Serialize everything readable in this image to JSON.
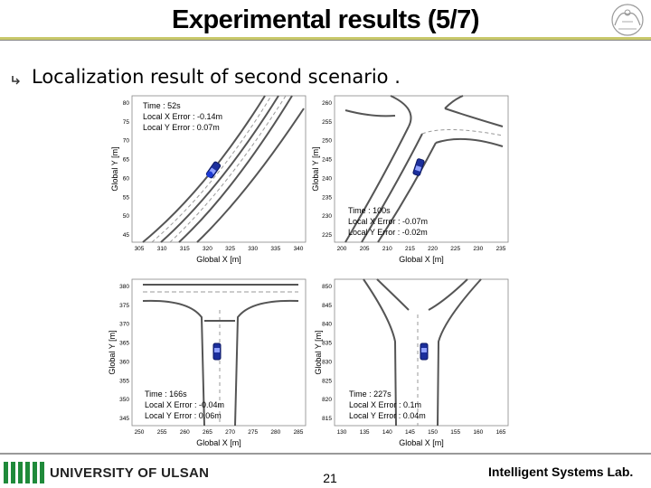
{
  "slide": {
    "title": "Experimental results (5/7)",
    "subtitle": "Localization result of second scenario .",
    "footer": {
      "university": "UNIVERSITY OF ULSAN",
      "page": "21",
      "lab": "Intelligent Systems Lab."
    }
  },
  "panels": [
    {
      "xlabel": "Global X [m]",
      "ylabel": "Global Y [m]",
      "xticks": [
        "305",
        "310",
        "315",
        "320",
        "325",
        "330",
        "335",
        "340"
      ],
      "yticks": [
        "80",
        "75",
        "70",
        "65",
        "60",
        "55",
        "50",
        "45"
      ],
      "lines": [
        "Time : 52s",
        "Local X Error : -0.14m",
        "Local Y Error : 0.07m"
      ]
    },
    {
      "xlabel": "Global X [m]",
      "ylabel": "Global Y [m]",
      "xticks": [
        "200",
        "205",
        "210",
        "215",
        "220",
        "225",
        "230",
        "235"
      ],
      "yticks": [
        "260",
        "255",
        "250",
        "245",
        "240",
        "235",
        "230",
        "225"
      ],
      "lines": [
        "Time : 100s",
        "Local X Error : -0.07m",
        "Local Y Error : -0.02m"
      ]
    },
    {
      "xlabel": "Global X [m]",
      "ylabel": "Global Y [m]",
      "xticks": [
        "250",
        "255",
        "260",
        "265",
        "270",
        "275",
        "280",
        "285"
      ],
      "yticks": [
        "380",
        "375",
        "370",
        "365",
        "360",
        "355",
        "350",
        "345"
      ],
      "lines": [
        "Time : 166s",
        "Local X Error : -0.04m",
        "Local Y Error : 0.06m"
      ]
    },
    {
      "xlabel": "Global X [m]",
      "ylabel": "Global Y [m]",
      "xticks": [
        "130",
        "135",
        "140",
        "145",
        "150",
        "155",
        "160",
        "165"
      ],
      "yticks": [
        "850",
        "845",
        "840",
        "835",
        "830",
        "825",
        "820",
        "815"
      ],
      "lines": [
        "Time : 227s",
        "Local X Error : 0.1m",
        "Local Y Error : 0.04m"
      ]
    }
  ]
}
